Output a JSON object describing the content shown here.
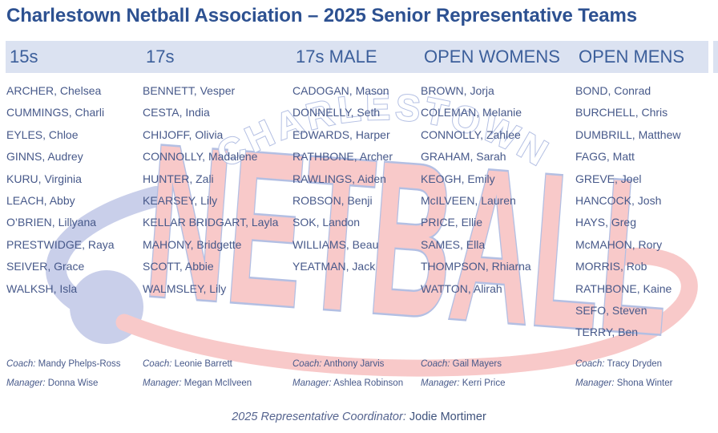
{
  "title": "Charlestown Netball Association – 2025 Senior Representative Teams",
  "labels": {
    "coach": "Coach:",
    "manager": "Manager:"
  },
  "teams": [
    {
      "name": "15s",
      "players": [
        "ARCHER, Chelsea",
        "CUMMINGS, Charli",
        "EYLES, Chloe",
        "GINNS, Audrey",
        "KURU, Virginia",
        "LEACH, Abby",
        "O’BRIEN, Lillyana",
        "PRESTWIDGE, Raya",
        "SEIVER, Grace",
        "WALKSH, Isla"
      ],
      "coach": "Mandy Phelps-Ross",
      "manager": "Donna Wise"
    },
    {
      "name": "17s",
      "players": [
        "BENNETT, Vesper",
        "CESTA, India",
        "CHIJOFF, Olivia",
        "CONNOLLY, Madalene",
        "HUNTER, Zali",
        "KEARSEY, Lily",
        "KELLAR BRIDGART, Layla",
        "MAHONY, Bridgette",
        "SCOTT, Abbie",
        "WALMSLEY, Lily"
      ],
      "coach": "Leonie Barrett",
      "manager": "Megan McIlveen"
    },
    {
      "name": "17s MALE",
      "players": [
        "CADOGAN, Mason",
        "DONNELLY, Seth",
        "EDWARDS, Harper",
        "RATHBONE, Archer",
        "RAWLINGS, Aiden",
        "ROBSON, Benji",
        "SOK, Landon",
        "WILLIAMS, Beau",
        "YEATMAN, Jack"
      ],
      "coach": "Anthony Jarvis",
      "manager": "Ashlea Robinson"
    },
    {
      "name": "OPEN WOMENS",
      "players": [
        "BROWN, Jorja",
        "COLEMAN, Melanie",
        "CONNOLLY, Zahlee",
        "GRAHAM, Sarah",
        "KEOGH, Emily",
        "McILVEEN, Lauren",
        "PRICE, Ellie",
        "SAMES, Ella",
        "THOMPSON, Rhiarna",
        "WATTON, Alirah"
      ],
      "coach": "Gail Mayers",
      "manager": "Kerri Price"
    },
    {
      "name": "OPEN MENS",
      "players": [
        "BOND, Conrad",
        "BURCHELL, Chris",
        "DUMBRILL, Matthew",
        "FAGG, Matt",
        "GREVE, Joel",
        "HANCOCK, Josh",
        "HAYS, Greg",
        "McMAHON, Rory",
        "MORRIS, Rob",
        "RATHBONE, Kaine",
        "SEFO, Steven",
        "TERRY, Ben"
      ],
      "coach": "Tracy Dryden",
      "manager": "Shona Winter"
    }
  ],
  "footer": {
    "label": "2025 Representative Coordinator:",
    "name": "Jodie Mortimer"
  },
  "watermark": {
    "arc_text": "CHARLESTOWN",
    "main_text": "NETBALL"
  },
  "colors": {
    "title_blue": "#2d5191",
    "header_band": "#dbe2f1",
    "header_text": "#3c5f9b",
    "body_text": "#47598a",
    "watermark_pink": "#f8c9c9",
    "watermark_lavender": "#c9cfea",
    "watermark_outline": "#b3bfe3"
  }
}
